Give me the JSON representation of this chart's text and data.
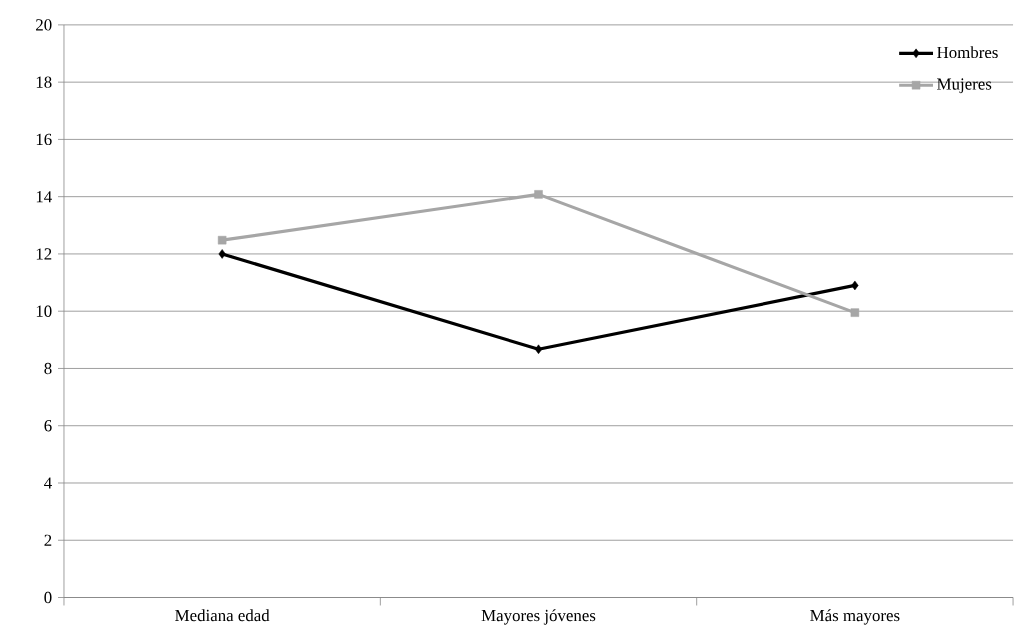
{
  "chart_data": {
    "type": "line",
    "categories": [
      "Mediana edad",
      "Mayores jóvenes",
      "Más mayores"
    ],
    "series": [
      {
        "name": "Hombres",
        "color": "#000000",
        "marker": "diamond",
        "values": [
          12.0,
          8.67,
          10.9
        ]
      },
      {
        "name": "Mujeres",
        "color": "#a6a6a6",
        "marker": "square",
        "values": [
          12.48,
          14.08,
          9.95
        ]
      }
    ],
    "ylim": [
      0,
      20
    ],
    "yticks": [
      0,
      2,
      4,
      6,
      8,
      10,
      12,
      14,
      16,
      18,
      20
    ],
    "grid": "y",
    "legend": "top right"
  }
}
